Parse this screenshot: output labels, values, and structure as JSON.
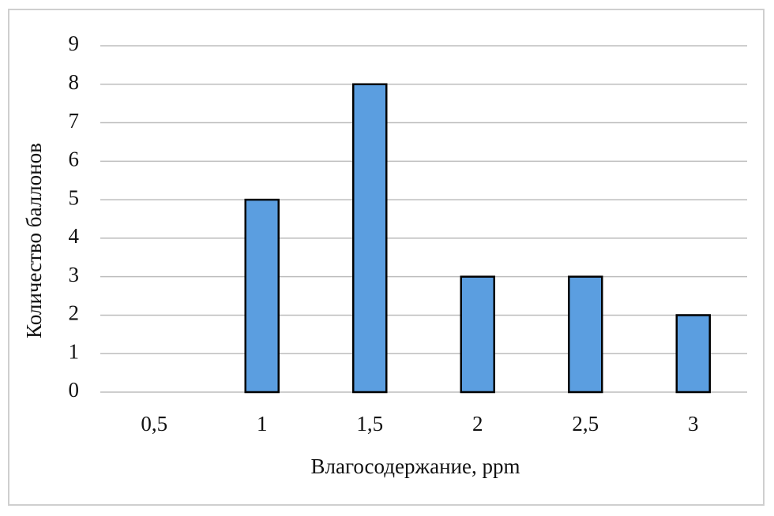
{
  "chart_data": {
    "type": "bar",
    "x_label": "Влагосодержание, ppm",
    "y_label": "Количество баллонов",
    "categories": [
      "0,5",
      "1",
      "1,5",
      "2",
      "2,5",
      "3"
    ],
    "values": [
      0,
      5,
      8,
      3,
      3,
      2
    ],
    "color": "#5b9ee0",
    "ylim": [
      0,
      9
    ],
    "yticks": [
      0,
      1,
      2,
      3,
      4,
      5,
      6,
      7,
      8,
      9
    ],
    "grid": true
  }
}
